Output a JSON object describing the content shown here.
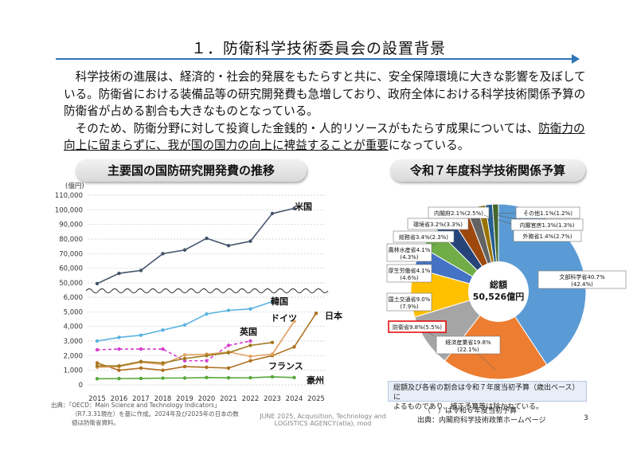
{
  "title": "１．防衛科学技術委員会の設置背景",
  "body": {
    "p1": "科学技術の進展は、経済的・社会的発展をもたらすと共に、安全保障環境に大きな影響を及ぼしている。防衛省における装備品等の研究開発費も急増しており、政府全体における科学技術関係予算の防衛省が占める割合も大きなものとなっている。",
    "p2a": "そのため、防衛分野に対して投資した金銭的・人的リソースがもたらす成果については、",
    "p2b": "防衛力の向上に留まらずに、我が国の国力の向上に裨益することが重要",
    "p2c": "になっている。"
  },
  "left_heading": "主要国の国防研究開発費の推移",
  "right_heading": "令和７年度科学技術関係予算",
  "colors": {
    "accent": "#2e75b6",
    "usa": "#44546a",
    "korea": "#5bb3e0",
    "japan": "#b07020",
    "uk": "#d63fcf",
    "germany": "#e0a060",
    "france": "#a07a20",
    "australia": "#58a83c"
  },
  "chart_data": [
    {
      "type": "line",
      "title": "主要国の国防研究開発費の推移",
      "ylabel": "(億円)",
      "x": [
        "2015",
        "2016",
        "2017",
        "2018",
        "2019",
        "2020",
        "2021",
        "2022",
        "2023",
        "2024",
        "2025"
      ],
      "y_upper_ticks": [
        "50,000",
        "60,000",
        "70,000",
        "80,000",
        "90,000",
        "100,000",
        "110,000"
      ],
      "y_lower_ticks": [
        "0",
        "1,000",
        "2,000",
        "3,000",
        "4,000",
        "5,000",
        "6,000"
      ],
      "upper_ylim": [
        50000,
        110000
      ],
      "lower_ylim": [
        0,
        6000
      ],
      "series": [
        {
          "name": "米国",
          "color": "#44546a",
          "panel": "upper",
          "values": [
            49500,
            56500,
            58500,
            70000,
            72500,
            80500,
            75500,
            78500,
            97500,
            101000,
            null
          ]
        },
        {
          "name": "韓国",
          "color": "#5bb3e0",
          "panel": "lower",
          "values": [
            3000,
            3250,
            3400,
            3750,
            4100,
            4850,
            5100,
            5200,
            5700,
            null,
            null
          ]
        },
        {
          "name": "日本",
          "color": "#b07020",
          "panel": "lower",
          "values": [
            1500,
            1000,
            1150,
            1000,
            1250,
            1200,
            1150,
            1650,
            2000,
            2600,
            4900
          ]
        },
        {
          "name": "英国",
          "color": "#d63fcf",
          "panel": "lower",
          "dashed": true,
          "values": [
            2400,
            2450,
            2450,
            2450,
            1650,
            1650,
            2700,
            3000,
            null,
            null,
            null
          ]
        },
        {
          "name": "ドイツ",
          "color": "#e0a060",
          "panel": "lower",
          "values": [
            1200,
            1250,
            1550,
            1400,
            2050,
            2100,
            2250,
            1950,
            2100,
            4350,
            null
          ]
        },
        {
          "name": "フランス",
          "color": "#a07a20",
          "panel": "lower",
          "values": [
            1300,
            1300,
            1600,
            1500,
            1800,
            2000,
            2200,
            2700,
            2900,
            null,
            null
          ]
        },
        {
          "name": "豪州",
          "color": "#58a83c",
          "panel": "lower",
          "values": [
            420,
            430,
            440,
            460,
            470,
            500,
            480,
            490,
            550,
            500,
            null
          ]
        }
      ]
    },
    {
      "type": "pie",
      "title": "令和７年度科学技術関係予算",
      "center_label": "総額",
      "center_value": "50,526億円",
      "slices": [
        {
          "label": "文部科学省40.7%",
          "sub": "(42.4%)",
          "value": 40.7,
          "color": "#5b9bd5"
        },
        {
          "label": "経済産業省19.8%",
          "sub": "(22.1%)",
          "value": 19.8,
          "color": "#ed7d31"
        },
        {
          "label": "防衛省9.8%(5.5%)",
          "sub": "",
          "value": 9.8,
          "color": "#a5a5a5",
          "highlight": true
        },
        {
          "label": "国土交通省9.0%",
          "sub": "(7.9%)",
          "value": 9.0,
          "color": "#ffc000"
        },
        {
          "label": "厚生労働省4.1%",
          "sub": "(4.6%)",
          "value": 4.1,
          "color": "#4472c4"
        },
        {
          "label": "農林水産省4.1%",
          "sub": "(4.3%)",
          "value": 4.1,
          "color": "#70ad47"
        },
        {
          "label": "総務省3.4%(2.3%)",
          "sub": "",
          "value": 3.4,
          "color": "#264478"
        },
        {
          "label": "環境省3.2%(3.3%)",
          "sub": "",
          "value": 3.2,
          "color": "#9e480e"
        },
        {
          "label": "内閣府2.1%(2.5%)",
          "sub": "",
          "value": 2.1,
          "color": "#636363"
        },
        {
          "label": "外務省1.4%(2.7%)",
          "sub": "",
          "value": 1.4,
          "color": "#997300"
        },
        {
          "label": "内閣官房1.3%(1.3%)",
          "sub": "",
          "value": 1.3,
          "color": "#255e91"
        },
        {
          "label": "その他1.1%(1.2%)",
          "sub": "",
          "value": 1.1,
          "color": "#43682b"
        }
      ]
    }
  ],
  "source_left": "出典：「OECD：Main Science and Technology Indicators」（R7.3.31現在）を基に作成。2024年及び2025年の日本の数値は防衛省資料。",
  "source_left_a": "出典：「OECD：Main Science and Technology Indicators」",
  "source_left_b": "（R7.3.31現在）を基に作成。2024年及び2025年の日本の数",
  "source_left_c": "値は防衛省資料。",
  "watermark_1": "JUNE 2025, Acquisition, Technology and",
  "watermark_2": "LOGISTICS AGENCY(atla), mod",
  "pie_note_1": "総額及び各省の割合は令和７年度当初予算（歳出ベース）に",
  "pie_note_2": "よるものであり、補正予算等は除かれている。",
  "pie_note_3": "（　）は令和６年度当初予算",
  "pie_source": "出典：内閣府科学技術政策ホームページ",
  "page_number": "3"
}
